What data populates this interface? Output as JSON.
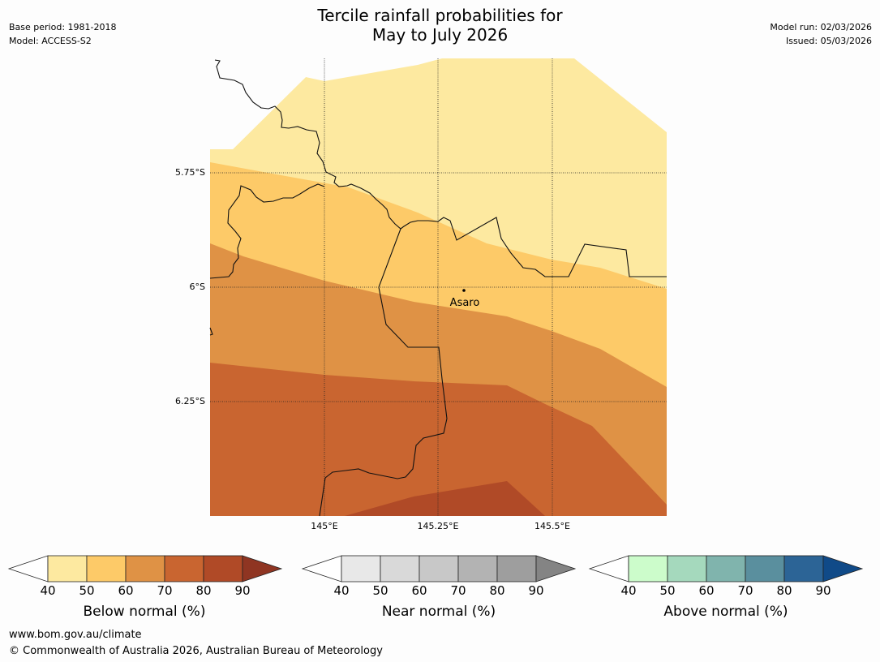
{
  "title": {
    "line1": "Tercile rainfall probabilities for",
    "line2": "May to July 2026"
  },
  "meta_left": {
    "base_period": "Base period: 1981-2018",
    "model": "Model: ACCESS-S2"
  },
  "meta_right": {
    "model_run": "Model run: 02/03/2026",
    "issued": "Issued: 05/03/2026"
  },
  "map": {
    "lat_labels": [
      "5.75°S",
      "6°S",
      "6.25°S"
    ],
    "lon_labels": [
      "145°E",
      "145.25°E",
      "145.5°E"
    ],
    "location": "Asaro",
    "bands": {
      "band_40_50": "#fde9a0",
      "band_50_60": "#fdca68",
      "band_60_70": "#df9245",
      "band_70_80": "#c96530",
      "band_80_90": "#b04a27"
    }
  },
  "colorbars": [
    {
      "label": "Below normal (%)",
      "ticks": [
        "40",
        "50",
        "60",
        "70",
        "80",
        "90"
      ],
      "colors": [
        "#fde9a0",
        "#fdca68",
        "#df9245",
        "#c96530",
        "#b04a27"
      ],
      "over": "#8f3522"
    },
    {
      "label": "Near normal (%)",
      "ticks": [
        "40",
        "50",
        "60",
        "70",
        "80",
        "90"
      ],
      "colors": [
        "#e8e8e8",
        "#d9d9d9",
        "#c8c8c8",
        "#b3b3b3",
        "#9e9e9e"
      ],
      "over": "#848484"
    },
    {
      "label": "Above normal (%)",
      "ticks": [
        "40",
        "50",
        "60",
        "70",
        "80",
        "90"
      ],
      "colors": [
        "#ccfccb",
        "#a5d9bd",
        "#80b4ad",
        "#5a8f9e",
        "#2c6496"
      ],
      "over": "#104a88"
    }
  ],
  "footer": {
    "url": "www.bom.gov.au/climate",
    "copyright": "© Commonwealth of Australia 2026, Australian Bureau of Meteorology"
  }
}
